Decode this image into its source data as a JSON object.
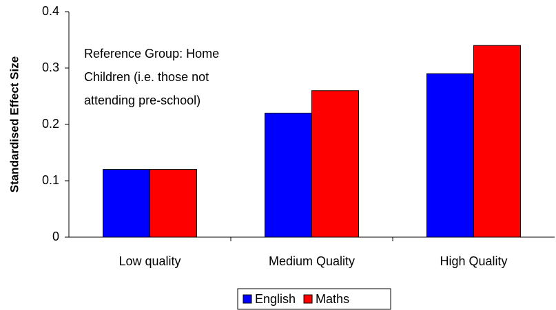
{
  "chart_data": {
    "type": "bar",
    "y_label": "Standardised Effect Size",
    "annotation": [
      "Reference Group: Home",
      "Children (i.e. those not",
      "attending pre-school)"
    ],
    "categories": [
      "Low quality",
      "Medium Quality",
      "High Quality"
    ],
    "series": [
      {
        "name": "English",
        "color": "#0000ff",
        "values": [
          0.12,
          0.22,
          0.29
        ]
      },
      {
        "name": "Maths",
        "color": "#ff0000",
        "values": [
          0.12,
          0.26,
          0.34
        ]
      }
    ],
    "ylim": [
      0,
      0.4
    ],
    "yticks": [
      0,
      0.1,
      0.2,
      0.3,
      0.4
    ],
    "grid": false,
    "legend": "bottom"
  }
}
